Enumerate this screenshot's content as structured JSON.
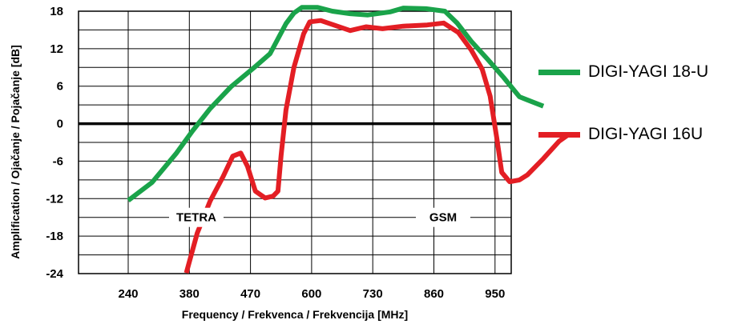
{
  "chart_data": {
    "type": "line",
    "xlabel": "Frequency / Frekvenca / Frekvencija  [MHz]",
    "ylabel": "Amplification / Ojačanje / Pojačanje  [dB]",
    "x_ticks": [
      "240",
      "380",
      "470",
      "600",
      "730",
      "860",
      "950"
    ],
    "y_ticks": [
      "18",
      "12",
      "6",
      "0",
      "-6",
      "-12",
      "-18",
      "-24"
    ],
    "ylim": [
      -24,
      18
    ],
    "grid": true,
    "legend_position": "right",
    "annotations": [
      {
        "text": "TETRA",
        "y": -15
      },
      {
        "text": "GSM",
        "y": -15
      }
    ],
    "series": [
      {
        "name": "DIGI-YAGI 18-U",
        "color": "#1aa34a",
        "points": [
          [
            0.0,
            -12.3
          ],
          [
            0.39,
            -9.4
          ],
          [
            0.79,
            -4.7
          ],
          [
            1.05,
            -1.2
          ],
          [
            1.34,
            2.4
          ],
          [
            1.68,
            5.9
          ],
          [
            2.05,
            8.9
          ],
          [
            2.32,
            11.2
          ],
          [
            2.58,
            16.0
          ],
          [
            2.71,
            17.7
          ],
          [
            2.84,
            18.6
          ],
          [
            3.1,
            18.6
          ],
          [
            3.34,
            18.0
          ],
          [
            3.63,
            17.6
          ],
          [
            3.92,
            17.4
          ],
          [
            4.29,
            17.9
          ],
          [
            4.5,
            18.5
          ],
          [
            4.87,
            18.4
          ],
          [
            5.18,
            18.0
          ],
          [
            5.38,
            16.1
          ],
          [
            5.61,
            13.2
          ],
          [
            5.87,
            10.4
          ],
          [
            6.14,
            7.4
          ],
          [
            6.4,
            4.3
          ],
          [
            6.53,
            3.8
          ],
          [
            6.79,
            2.8
          ]
        ]
      },
      {
        "name": "DIGI-YAGI 16U",
        "color": "#e31e24",
        "points": [
          [
            0.95,
            -23.9
          ],
          [
            1.13,
            -17.5
          ],
          [
            1.34,
            -12.4
          ],
          [
            1.55,
            -8.5
          ],
          [
            1.71,
            -5.2
          ],
          [
            1.84,
            -4.7
          ],
          [
            1.95,
            -6.8
          ],
          [
            2.08,
            -10.8
          ],
          [
            2.24,
            -11.9
          ],
          [
            2.37,
            -11.6
          ],
          [
            2.45,
            -10.8
          ],
          [
            2.5,
            -5.1
          ],
          [
            2.58,
            2.2
          ],
          [
            2.71,
            9.0
          ],
          [
            2.87,
            14.4
          ],
          [
            2.97,
            16.3
          ],
          [
            3.15,
            16.5
          ],
          [
            3.42,
            15.6
          ],
          [
            3.63,
            14.9
          ],
          [
            3.89,
            15.5
          ],
          [
            4.16,
            15.2
          ],
          [
            4.5,
            15.6
          ],
          [
            4.89,
            15.8
          ],
          [
            5.16,
            16.1
          ],
          [
            5.4,
            14.6
          ],
          [
            5.61,
            11.8
          ],
          [
            5.79,
            8.7
          ],
          [
            5.92,
            4.4
          ],
          [
            6.03,
            -2.4
          ],
          [
            6.11,
            -7.8
          ],
          [
            6.24,
            -9.3
          ],
          [
            6.4,
            -9.0
          ],
          [
            6.53,
            -8.2
          ],
          [
            6.79,
            -5.6
          ],
          [
            7.05,
            -2.8
          ],
          [
            7.21,
            -1.7
          ]
        ]
      }
    ]
  }
}
